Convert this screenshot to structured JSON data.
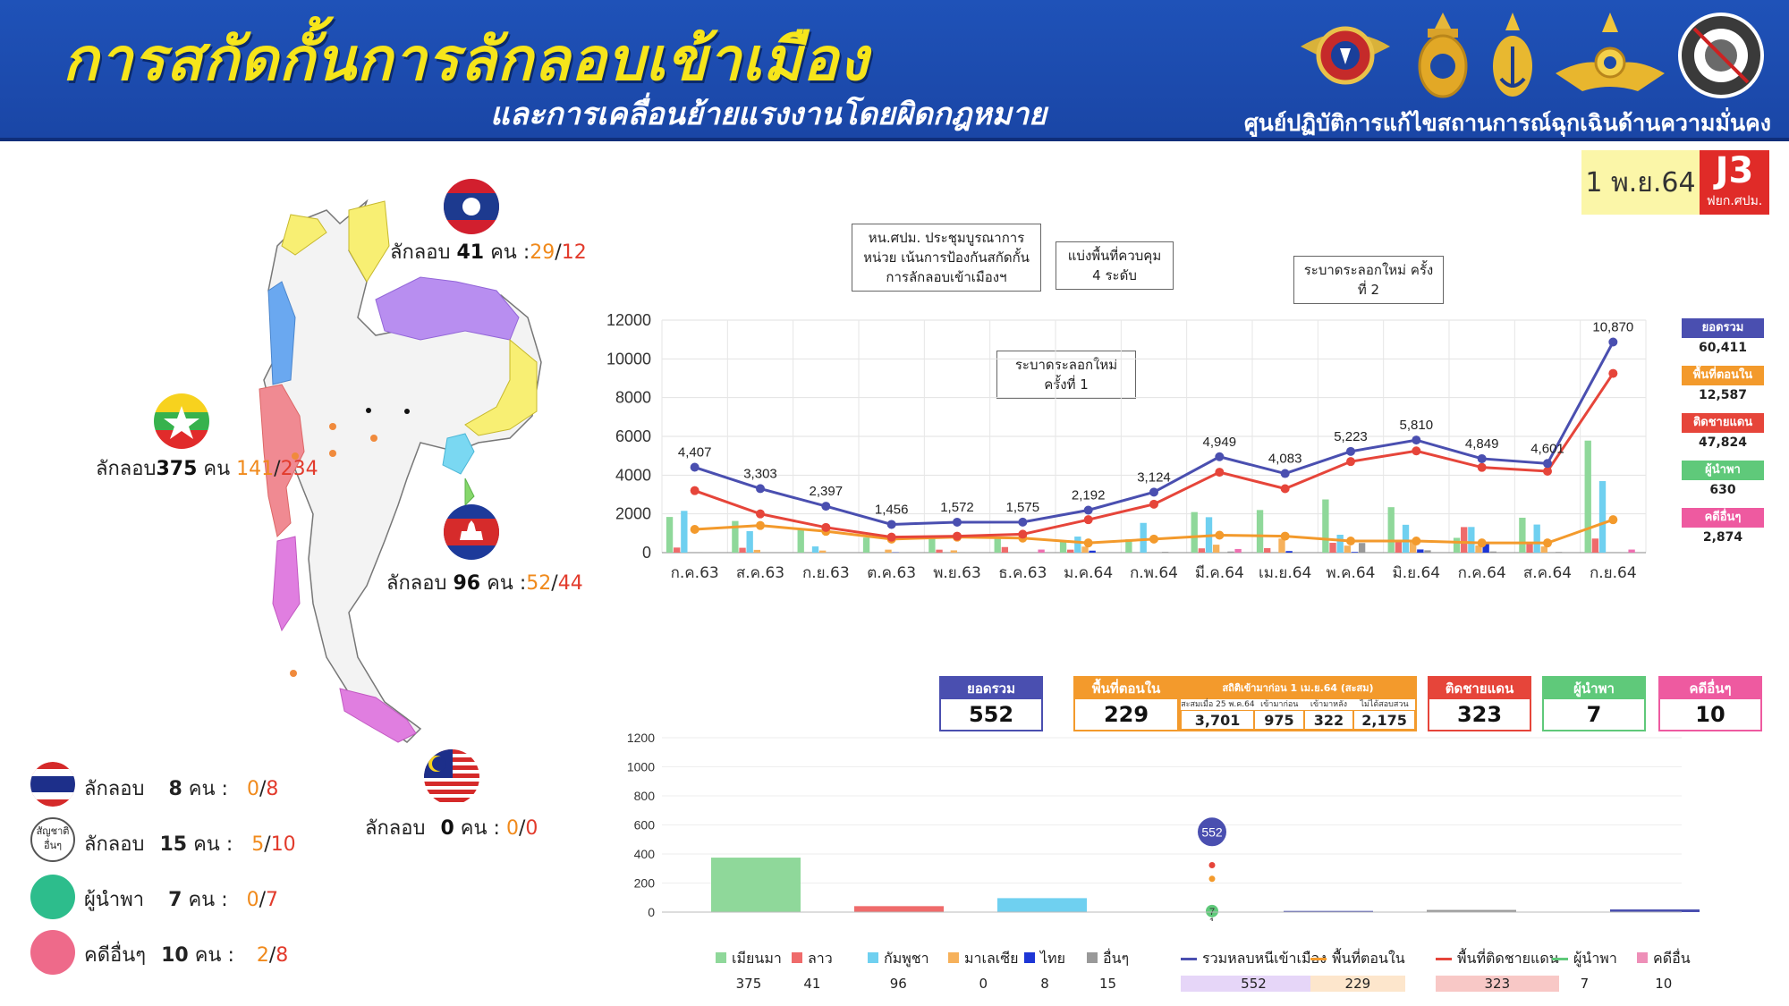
{
  "header": {
    "title": "การสกัดกั้นการลักลอบเข้าเมือง",
    "subtitle": "และการเคลื่อนย้ายแรงงานโดยผิดกฎหมาย",
    "org": "ศูนย์ปฏิบัติการแก้ไขสถานการณ์ฉุกเฉินด้านความมั่นคง"
  },
  "badge": {
    "date": "1 พ.ย.64",
    "code": "J3",
    "unit": "ฟยก.ศปม."
  },
  "map": {
    "laos": {
      "prefix": "ลักลอบ",
      "count": "41",
      "unit": "คน",
      "a": "29",
      "b": "12"
    },
    "myanmar": {
      "prefix": "ลักลอบ",
      "count": "375",
      "unit": "คน",
      "a": "141",
      "b": "234"
    },
    "cambodia": {
      "prefix": "ลักลอบ",
      "count": "96",
      "unit": "คน",
      "a": "52",
      "b": "44"
    },
    "malaysia": {
      "prefix": "ลักลอบ",
      "count": "0",
      "unit": "คน",
      "a": "0",
      "b": "0"
    },
    "dash_left_colon": ":",
    "slash": "/"
  },
  "left_stats": [
    {
      "label": "ลักลอบ",
      "count": "8",
      "unit": "คน",
      "a": "0",
      "b": "8",
      "icon": "thai-flag-icon"
    },
    {
      "label": "ลักลอบ",
      "count": "15",
      "unit": "คน",
      "a": "5",
      "b": "10",
      "icon": "other-nation-icon",
      "icon_text": "สัญชาติ อื่นๆ"
    },
    {
      "label": "ผู้นำพา",
      "count": "7",
      "unit": "คน",
      "a": "0",
      "b": "7",
      "icon": "green-circle-icon",
      "color": "#2dbd8c"
    },
    {
      "label": "คดีอื่นๆ",
      "count": "10",
      "unit": "คน",
      "a": "2",
      "b": "8",
      "icon": "pink-circle-icon",
      "color": "#ee6a8a"
    }
  ],
  "callouts": {
    "c1": "หน.ศปม. ประชุมบูรณาการหน่วย เน้นการป้องกันสกัดกั้น การลักลอบเข้าเมืองฯ",
    "c2": "แบ่งพื้นที่ควบคุม 4 ระดับ",
    "c3": "ระบาดระลอกใหม่ ครั้งที่ 1",
    "c4": "ระบาดระลอกใหม่ ครั้งที่ 2"
  },
  "side_legend": [
    {
      "label": "ยอดรวม",
      "value": "60,411",
      "color": "#4a4fb0"
    },
    {
      "label": "พื้นที่ตอนใน",
      "value": "12,587",
      "color": "#f39a2c"
    },
    {
      "label": "ติดชายแดน",
      "value": "47,824",
      "color": "#e6453a"
    },
    {
      "label": "ผู้นำพา",
      "value": "630",
      "color": "#5fc97a"
    },
    {
      "label": "คดีอื่นๆ",
      "value": "2,874",
      "color": "#ee5aa0"
    }
  ],
  "summary": {
    "total": {
      "label": "ยอดรวม",
      "value": "552",
      "color": "#4a4fb0"
    },
    "inner": {
      "label": "พื้นที่ตอนใน",
      "value": "229",
      "color": "#f39a2c"
    },
    "stat_header": "สถิติเข้ามาก่อน 1 เม.ย.64 (สะสม)",
    "stat_cols": [
      {
        "label": "สะสมเมื่อ 25 พ.ค.64",
        "value": "3,701"
      },
      {
        "label": "เข้ามาก่อน",
        "value": "975"
      },
      {
        "label": "เข้ามาหลัง",
        "value": "322"
      },
      {
        "label": "ไม่ได้สอบสวน",
        "value": "2,175"
      }
    ],
    "border": {
      "label": "ติดชายแดน",
      "value": "323",
      "color": "#e6453a"
    },
    "guide": {
      "label": "ผู้นำพา",
      "value": "7",
      "color": "#5fc97a"
    },
    "other": {
      "label": "คดีอื่นๆ",
      "value": "10",
      "color": "#ee5aa0"
    }
  },
  "chart_data": [
    {
      "type": "line",
      "x": [
        "ก.ค.63",
        "ส.ค.63",
        "ก.ย.63",
        "ต.ค.63",
        "พ.ย.63",
        "ธ.ค.63",
        "ม.ค.64",
        "ก.พ.64",
        "มี.ค.64",
        "เม.ย.64",
        "พ.ค.64",
        "มิ.ย.64",
        "ก.ค.64",
        "ส.ค.64",
        "ก.ย.64"
      ],
      "ylim": [
        0,
        12000
      ],
      "yticks": [
        0,
        2000,
        4000,
        6000,
        8000,
        10000,
        12000
      ],
      "grid": true,
      "series": [
        {
          "name": "ยอดรวม",
          "color": "#4a4fb0",
          "values": [
            4407,
            3303,
            2397,
            1456,
            1572,
            1575,
            2192,
            3124,
            4949,
            4083,
            5223,
            5810,
            4849,
            4601,
            10870
          ],
          "labels": [
            "4,407",
            "3,303",
            "2,397",
            "1,456",
            "1,572",
            "1,575",
            "2,192",
            "3,124",
            "4,949",
            "4,083",
            "5,223",
            "5,810",
            "4,849",
            "4,601",
            "10,870"
          ]
        },
        {
          "name": "ติดชายแดน",
          "color": "#e6453a",
          "values": [
            3200,
            2000,
            1300,
            800,
            850,
            950,
            1700,
            2500,
            4150,
            3300,
            4700,
            5250,
            4400,
            4200,
            9250
          ]
        },
        {
          "name": "พื้นที่ตอนใน",
          "color": "#f39a2c",
          "values": [
            1200,
            1400,
            1100,
            700,
            800,
            750,
            500,
            700,
            900,
            850,
            600,
            600,
            500,
            500,
            1700
          ]
        }
      ],
      "bars": {
        "colors": [
          "#8fd89a",
          "#ef6b6b",
          "#6fd0f0",
          "#f6b15b",
          "#1d36d6",
          "#999999",
          "#ee6fb0"
        ],
        "values": [
          [
            1841,
            262,
            2156,
            0,
            0,
            10,
            0
          ],
          [
            1633,
            250,
            1107,
            143,
            0,
            0,
            0
          ],
          [
            1166,
            0,
            320,
            108,
            0,
            0,
            0
          ],
          [
            776,
            0,
            0,
            155,
            13,
            10,
            0
          ],
          [
            851,
            154,
            0,
            118,
            0,
            8,
            0
          ],
          [
            769,
            288,
            0,
            0,
            0,
            4,
            159
          ],
          [
            560,
            154,
            829,
            312,
            103,
            0,
            0
          ],
          [
            688,
            0,
            1534,
            0,
            0,
            41,
            0
          ],
          [
            2093,
            221,
            1829,
            410,
            0,
            59,
            188
          ],
          [
            2199,
            233,
            0,
            725,
            83,
            27,
            0
          ],
          [
            2745,
            506,
            923,
            361,
            35,
            497,
            0
          ],
          [
            2346,
            604,
            1438,
            669,
            164,
            121,
            0
          ],
          [
            764,
            1319,
            1324,
            373,
            443,
            60,
            0
          ],
          [
            1802,
            527,
            1450,
            321,
            0,
            37,
            0
          ],
          [
            5782,
            726,
            3692,
            0,
            0,
            12,
            159
          ]
        ]
      }
    },
    {
      "type": "bar",
      "categories": [
        "เมียนมา",
        "ลาว",
        "กัมพูชา",
        "มาเลเซีย",
        "ไทย",
        "อื่นๆ",
        "รวมหลบหนีเข้าเมือง",
        "พื้นที่ตอนใน",
        "พื้นที่ติดชายแดน",
        "ผู้นำพา",
        "คดีอื่น"
      ],
      "values": [
        375,
        41,
        96,
        0,
        8,
        15,
        552,
        229,
        323,
        7,
        10
      ],
      "ylim": [
        0,
        1200
      ],
      "yticks": [
        0,
        200,
        400,
        600,
        800,
        1000,
        1200
      ],
      "bar_colors": [
        "#8fd89a",
        "#ef6b6b",
        "#6fd0f0",
        "#f6b15b",
        "#4a4fb0",
        "#999999",
        "#ee8fb8"
      ],
      "points": [
        {
          "label": "552",
          "value": 552,
          "color": "#4a4fb0"
        },
        {
          "label": "",
          "value": 323,
          "color": "#e6453a"
        },
        {
          "label": "",
          "value": 229,
          "color": "#f39a2c"
        },
        {
          "label": "7",
          "value": 7,
          "color": "#5fc97a"
        },
        {
          "label": "1",
          "value": 1,
          "color": "#333"
        }
      ]
    }
  ],
  "bottom_legend": [
    {
      "label": "เมียนมา",
      "value": "375",
      "color": "#8fd89a",
      "type": "sq"
    },
    {
      "label": "ลาว",
      "value": "41",
      "color": "#ef6b6b",
      "type": "sq"
    },
    {
      "label": "กัมพูชา",
      "value": "96",
      "color": "#6fd0f0",
      "type": "sq"
    },
    {
      "label": "มาเลเซีย",
      "value": "0",
      "color": "#f6b15b",
      "type": "sq"
    },
    {
      "label": "ไทย",
      "value": "8",
      "color": "#1d36d6",
      "type": "sq"
    },
    {
      "label": "อื่นๆ",
      "value": "15",
      "color": "#999999",
      "type": "sq"
    },
    {
      "label": "รวมหลบหนีเข้าเมือง",
      "value": "552",
      "color": "#4a4fb0",
      "type": "ln",
      "bg": "#e6d6f8"
    },
    {
      "label": "พื้นที่ตอนใน",
      "value": "229",
      "color": "#f39a2c",
      "type": "ln",
      "bg": "#fde6cc"
    },
    {
      "label": "พื้นที่ติดชายแดน",
      "value": "323",
      "color": "#e6453a",
      "type": "ln",
      "bg": "#f8c8c6"
    },
    {
      "label": "ผู้นำพา",
      "value": "7",
      "color": "#5fc97a",
      "type": "ln"
    },
    {
      "label": "คดีอื่น",
      "value": "10",
      "color": "#ee8fb8",
      "type": "sq"
    }
  ]
}
